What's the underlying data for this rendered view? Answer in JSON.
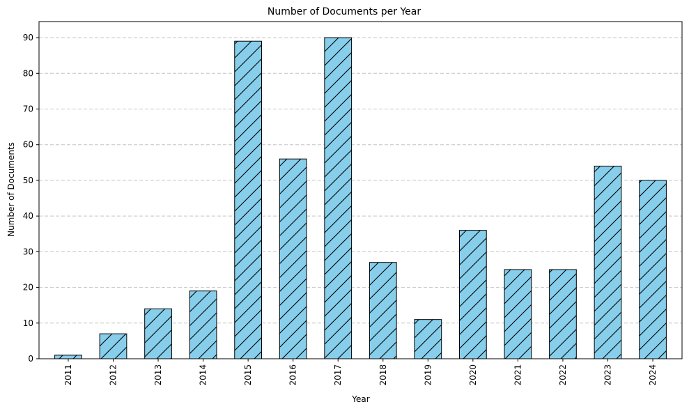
{
  "chart_data": {
    "type": "bar",
    "title": "Number of Documents per Year",
    "xlabel": "Year",
    "ylabel": "Number of Documents",
    "categories": [
      "2011",
      "2012",
      "2013",
      "2014",
      "2015",
      "2016",
      "2017",
      "2018",
      "2019",
      "2020",
      "2021",
      "2022",
      "2023",
      "2024"
    ],
    "values": [
      1,
      7,
      14,
      19,
      89,
      56,
      90,
      27,
      11,
      36,
      25,
      25,
      54,
      50
    ],
    "ylim": [
      0,
      94.5
    ],
    "yticks": [
      0,
      10,
      20,
      30,
      40,
      50,
      60,
      70,
      80,
      90
    ],
    "grid": "y-dashed",
    "legend": "none",
    "bar_color": "#87ceeb",
    "edge_color": "#000000",
    "hatch": "/"
  }
}
